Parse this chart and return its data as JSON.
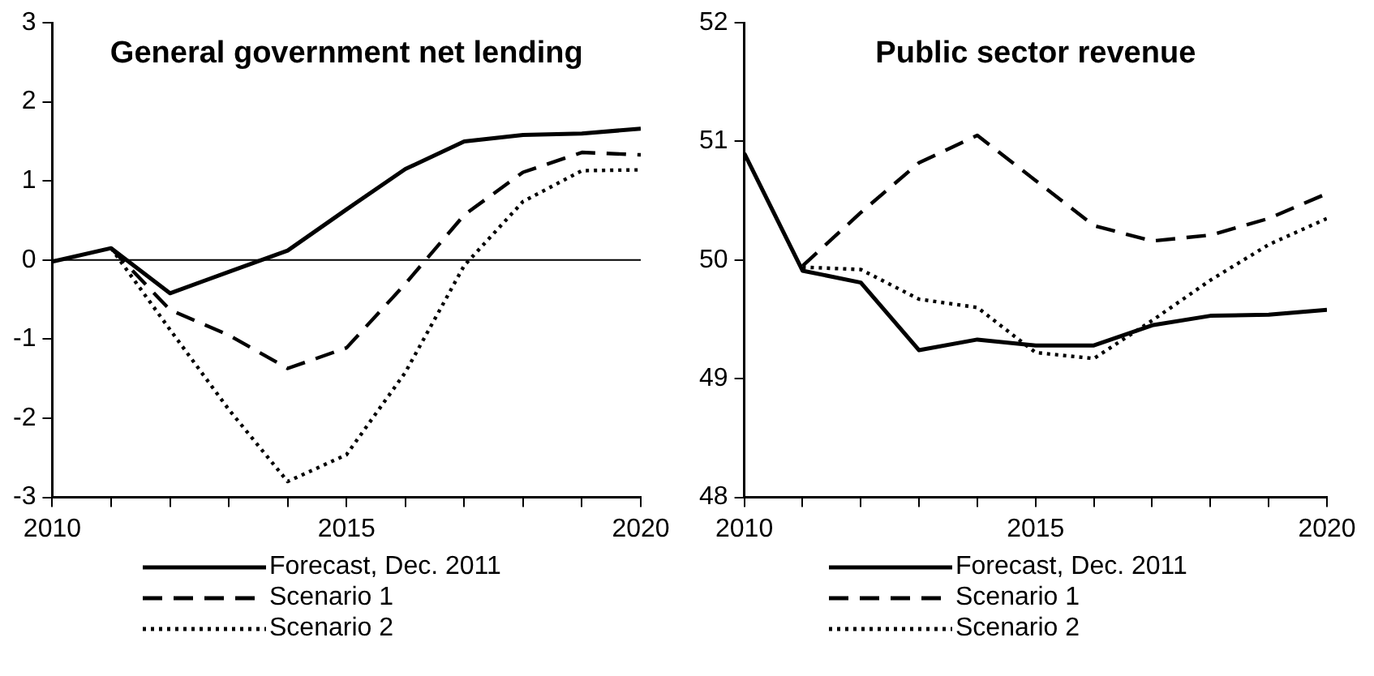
{
  "chart_data": [
    {
      "type": "line",
      "title": "General government net lending",
      "x": [
        2010,
        2011,
        2012,
        2013,
        2014,
        2015,
        2016,
        2017,
        2018,
        2019,
        2020
      ],
      "series": [
        {
          "name": "Forecast, Dec. 2011",
          "color": "#000000",
          "line_style": "solid",
          "values": [
            -0.02,
            0.15,
            -0.42,
            -0.15,
            0.12,
            0.64,
            1.15,
            1.5,
            1.58,
            1.6,
            1.66
          ]
        },
        {
          "name": "Scenario 1",
          "color": "#000000",
          "line_style": "dashed",
          "values": [
            null,
            0.15,
            -0.63,
            -0.95,
            -1.37,
            -1.11,
            -0.3,
            0.57,
            1.11,
            1.36,
            1.33
          ]
        },
        {
          "name": "Scenario 2",
          "color": "#000000",
          "line_style": "dotted",
          "values": [
            null,
            0.15,
            -0.88,
            -1.89,
            -2.8,
            -2.46,
            -1.42,
            -0.07,
            0.74,
            1.13,
            1.14
          ]
        }
      ],
      "xlim": [
        2010,
        2020
      ],
      "xticks": [
        2010,
        {
          "value": 2011,
          "label": null
        },
        {
          "value": 2012,
          "label": null
        },
        {
          "value": 2013,
          "label": null
        },
        {
          "value": 2014,
          "label": null
        },
        2015,
        {
          "value": 2016,
          "label": null
        },
        {
          "value": 2017,
          "label": null
        },
        {
          "value": 2018,
          "label": null
        },
        {
          "value": 2019,
          "label": null
        },
        2020
      ],
      "ylim": [
        -3,
        3
      ],
      "yticks": [
        -3,
        -2,
        -1,
        0,
        1,
        2,
        3
      ],
      "ref_lines": [
        {
          "axis": "y",
          "value": 0,
          "color": "#000000"
        }
      ],
      "marker": "none",
      "legend": "bottom"
    },
    {
      "type": "line",
      "title": "Public sector revenue",
      "x": [
        2010,
        2011,
        2012,
        2013,
        2014,
        2015,
        2016,
        2017,
        2018,
        2019,
        2020
      ],
      "series": [
        {
          "name": "Forecast, Dec. 2011",
          "color": "#000000",
          "line_style": "solid",
          "values": [
            50.9,
            49.91,
            49.81,
            49.24,
            49.33,
            49.28,
            49.28,
            49.45,
            49.53,
            49.54,
            49.58
          ]
        },
        {
          "name": "Scenario 1",
          "color": "#000000",
          "line_style": "dashed",
          "values": [
            null,
            49.95,
            50.4,
            50.82,
            51.05,
            50.67,
            50.29,
            50.16,
            50.21,
            50.35,
            50.56
          ]
        },
        {
          "name": "Scenario 2",
          "color": "#000000",
          "line_style": "dotted",
          "values": [
            null,
            49.94,
            49.92,
            49.67,
            49.6,
            49.22,
            49.17,
            49.49,
            49.83,
            50.13,
            50.35
          ]
        }
      ],
      "xlim": [
        2010,
        2020
      ],
      "xticks": [
        2010,
        {
          "value": 2011,
          "label": null
        },
        {
          "value": 2012,
          "label": null
        },
        {
          "value": 2013,
          "label": null
        },
        {
          "value": 2014,
          "label": null
        },
        2015,
        {
          "value": 2016,
          "label": null
        },
        {
          "value": 2017,
          "label": null
        },
        {
          "value": 2018,
          "label": null
        },
        {
          "value": 2019,
          "label": null
        },
        2020
      ],
      "ylim": [
        48,
        52
      ],
      "yticks": [
        48,
        49,
        50,
        51,
        52
      ],
      "marker": "none",
      "legend": "bottom"
    }
  ]
}
